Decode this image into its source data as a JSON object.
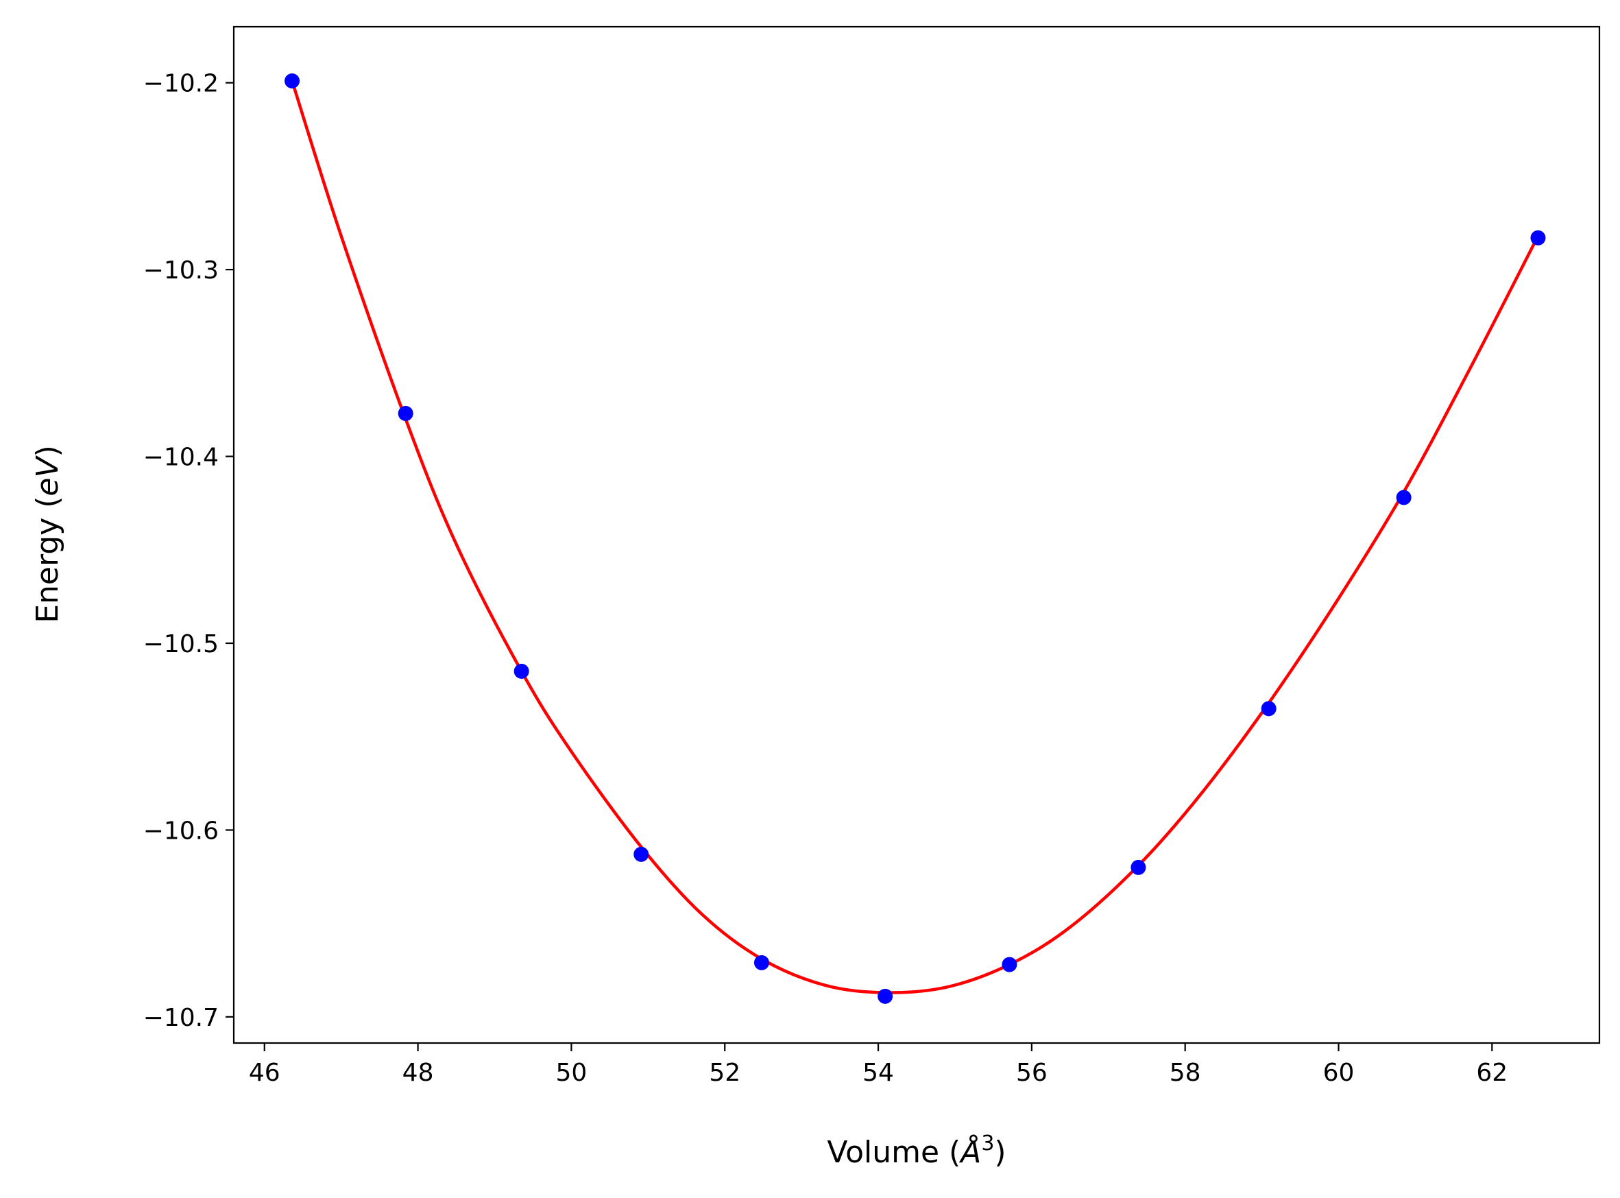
{
  "chart_data": {
    "type": "scatter",
    "title": "",
    "xlabel": "Volume ($\\AA^3$)",
    "xlabel_parts": {
      "prefix": "Volume (",
      "symbol": "Å",
      "exponent": "3",
      "suffix": ")"
    },
    "ylabel": "Energy ($eV$)",
    "ylabel_parts": {
      "prefix": "Energy (",
      "unit": "eV",
      "suffix": ")"
    },
    "xlim": [
      45.6,
      63.4
    ],
    "ylim": [
      -10.714,
      -10.17
    ],
    "xticks": [
      46,
      48,
      50,
      52,
      54,
      56,
      58,
      60,
      62
    ],
    "yticks": [
      -10.2,
      -10.3,
      -10.4,
      -10.5,
      -10.6,
      -10.7
    ],
    "xtick_labels": [
      "46",
      "48",
      "50",
      "52",
      "54",
      "56",
      "58",
      "60",
      "62"
    ],
    "ytick_labels": [
      "−10.2",
      "−10.3",
      "−10.4",
      "−10.5",
      "−10.6",
      "−10.7"
    ],
    "grid": false,
    "series": [
      {
        "kind": "markers",
        "color": "#0000ff",
        "x": [
          46.36,
          47.84,
          49.35,
          50.91,
          52.48,
          54.09,
          55.71,
          57.39,
          59.09,
          60.85,
          62.6
        ],
        "y": [
          -10.199,
          -10.377,
          -10.515,
          -10.613,
          -10.671,
          -10.689,
          -10.672,
          -10.62,
          -10.535,
          -10.422,
          -10.283
        ]
      },
      {
        "kind": "line",
        "color": "#ff0000",
        "x": [
          46.36,
          47.0,
          47.84,
          48.5,
          49.35,
          50.0,
          50.91,
          51.7,
          52.48,
          53.3,
          54.09,
          54.9,
          55.71,
          56.5,
          57.39,
          58.2,
          59.09,
          60.0,
          60.85,
          61.7,
          62.6
        ],
        "y": [
          -10.199,
          -10.282,
          -10.38,
          -10.447,
          -10.515,
          -10.558,
          -10.609,
          -10.645,
          -10.669,
          -10.683,
          -10.687,
          -10.684,
          -10.672,
          -10.652,
          -10.619,
          -10.581,
          -10.532,
          -10.476,
          -10.419,
          -10.354,
          -10.282
        ]
      }
    ]
  }
}
